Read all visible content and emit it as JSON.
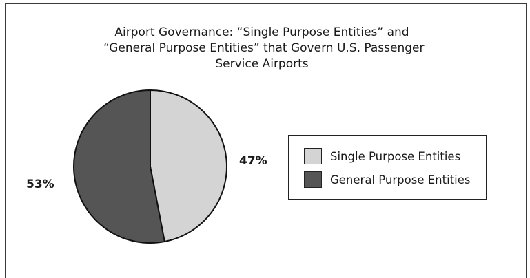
{
  "chart_data": {
    "type": "pie",
    "title_lines": [
      "Airport Governance: “Single Purpose Entities” and",
      "“General Purpose Entities” that Govern U.S. Passenger",
      "Service Airports"
    ],
    "slices": [
      {
        "name": "Single Purpose Entities",
        "value": 47,
        "label": "47%",
        "color": "#d4d4d4"
      },
      {
        "name": "General Purpose Entities",
        "value": 53,
        "label": "53%",
        "color": "#555555"
      }
    ],
    "legend_position": "right"
  }
}
